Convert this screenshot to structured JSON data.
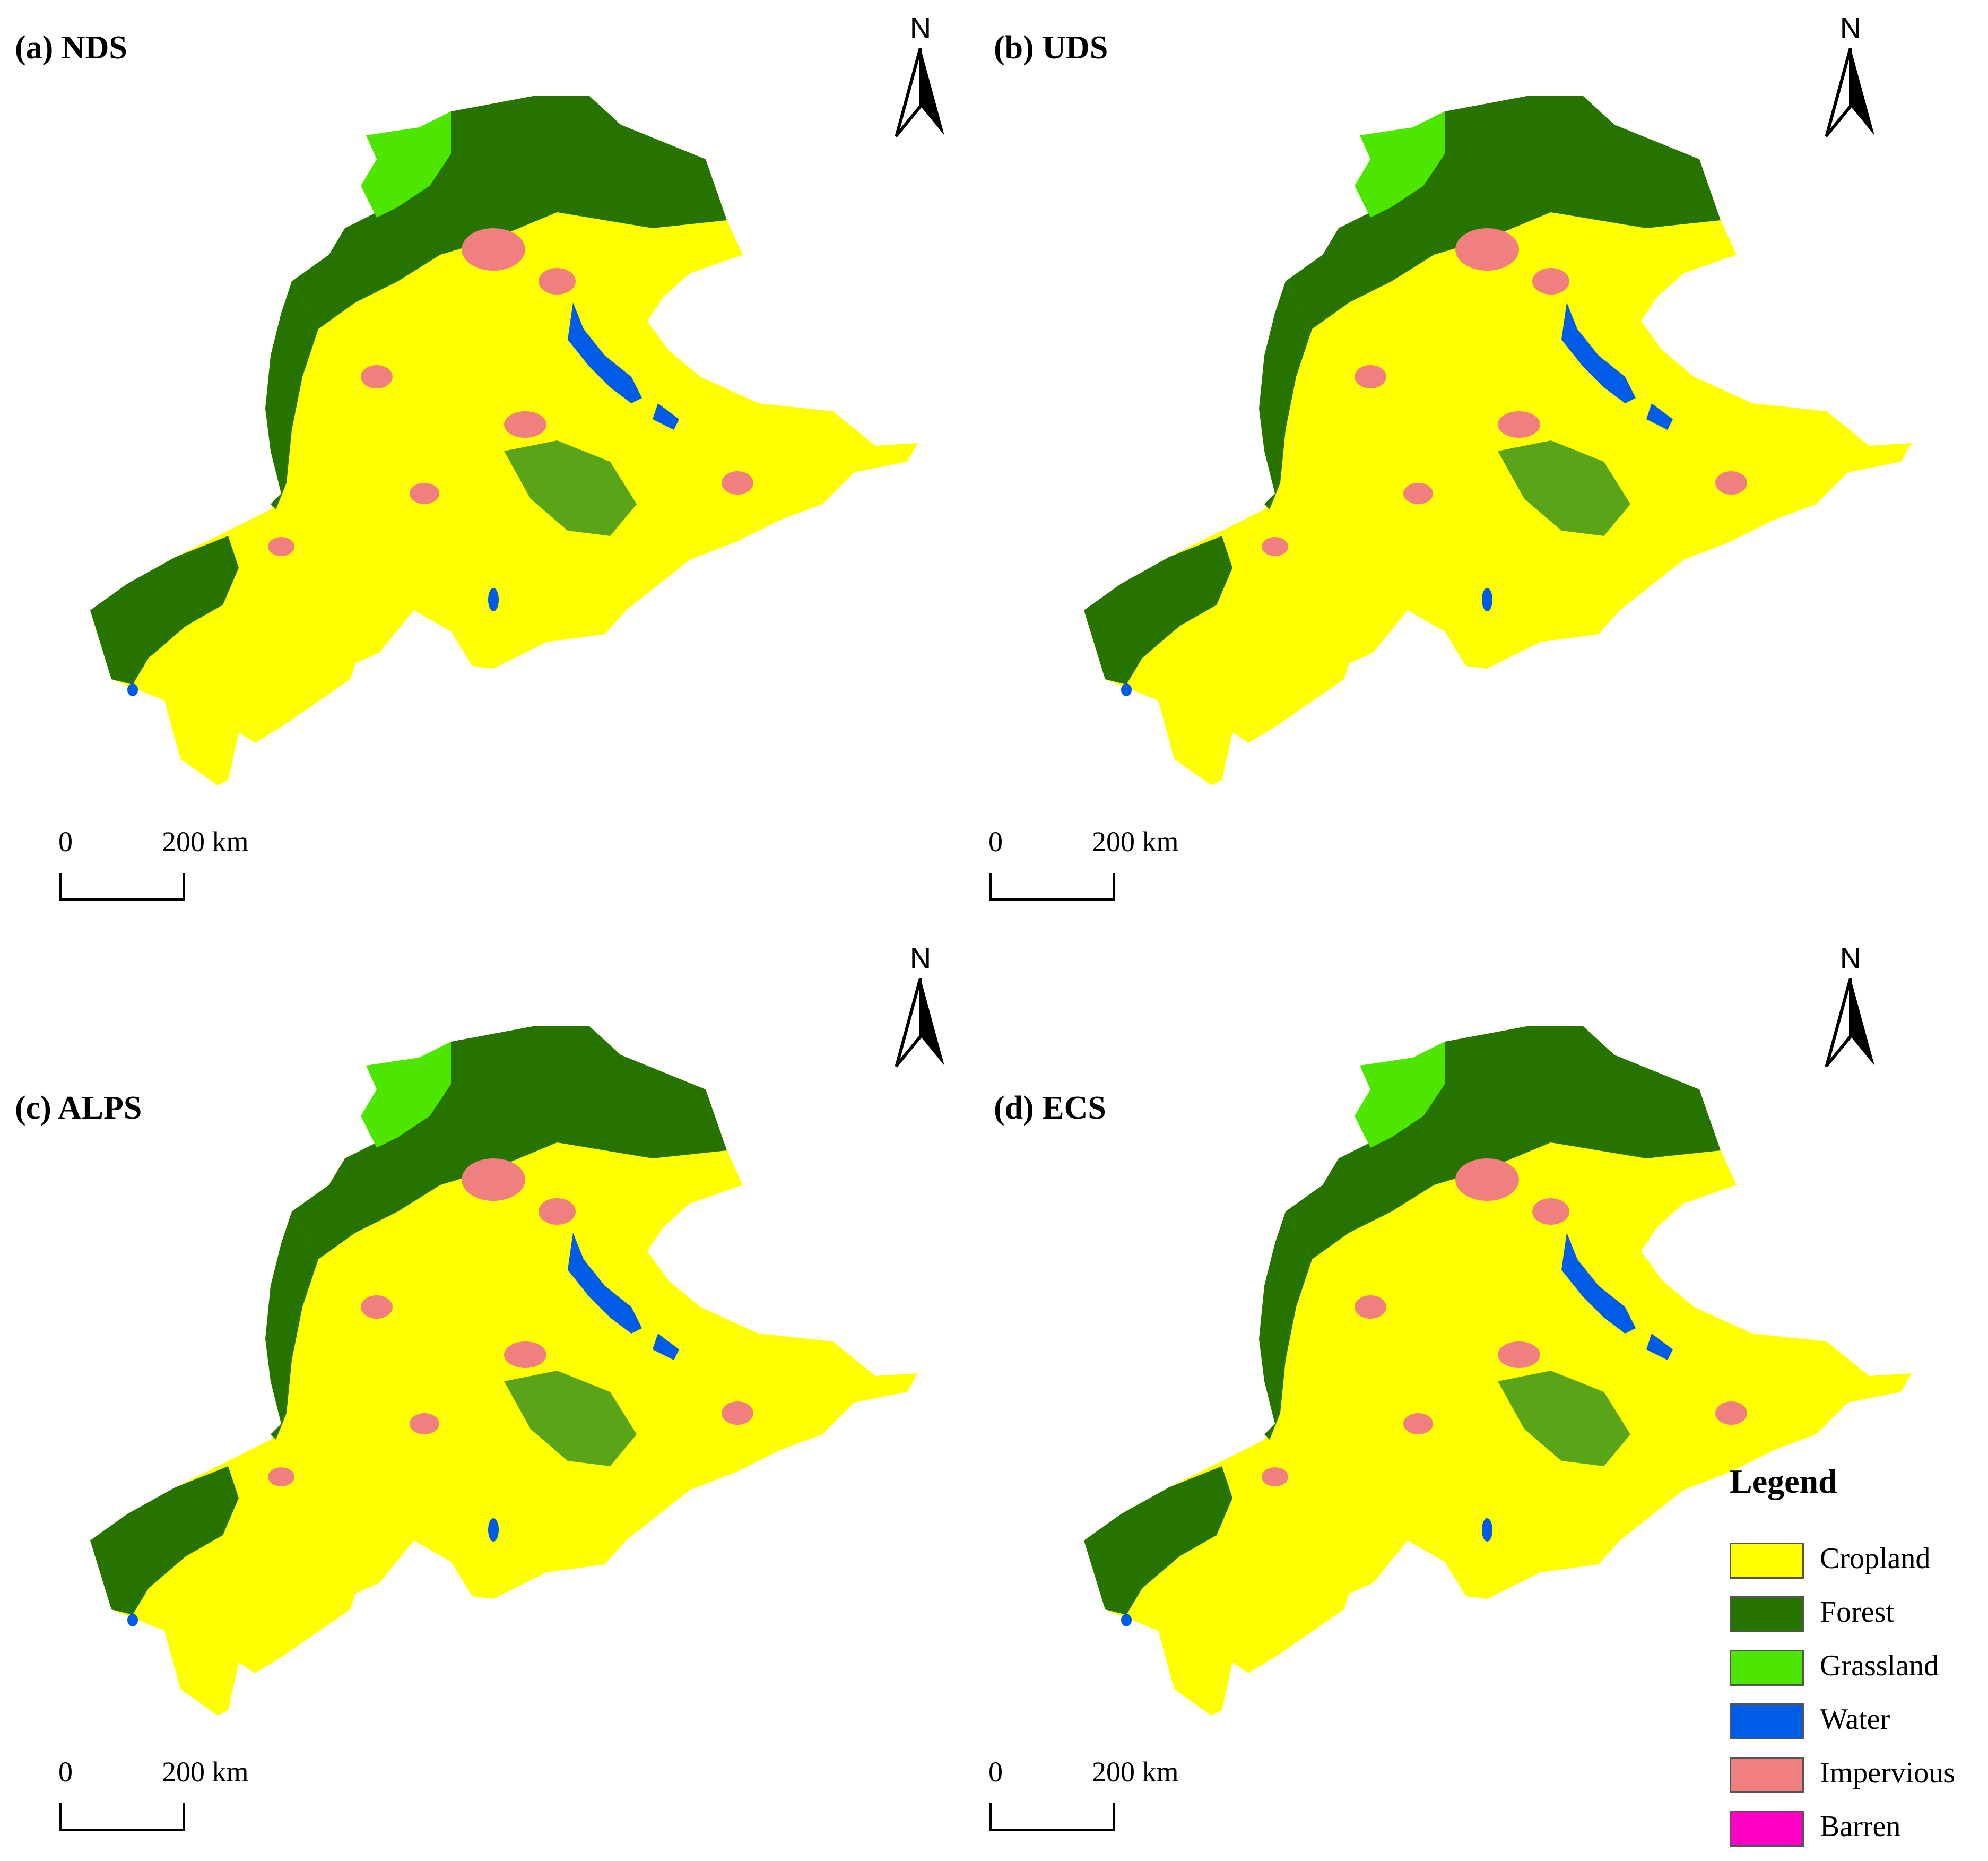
{
  "panels": [
    {
      "title": "(a) NDS",
      "north_label": "N",
      "scale_start": "0",
      "scale_end": "200 km"
    },
    {
      "title": "(b) UDS",
      "north_label": "N",
      "scale_start": "0",
      "scale_end": "200 km"
    },
    {
      "title": "(c) ALPS",
      "north_label": "N",
      "scale_start": "0",
      "scale_end": "200 km"
    },
    {
      "title": "(d) ECS",
      "north_label": "N",
      "scale_start": "0",
      "scale_end": "200 km"
    }
  ],
  "legend": {
    "title": "Legend",
    "items": [
      {
        "label": "Cropland",
        "color": "#ffff00"
      },
      {
        "label": "Forest",
        "color": "#267300"
      },
      {
        "label": "Grassland",
        "color": "#4ce600"
      },
      {
        "label": "Water",
        "color": "#005ce6"
      },
      {
        "label": "Impervious",
        "color": "#f08080"
      },
      {
        "label": "Barren",
        "color": "#ff00c5"
      }
    ]
  }
}
